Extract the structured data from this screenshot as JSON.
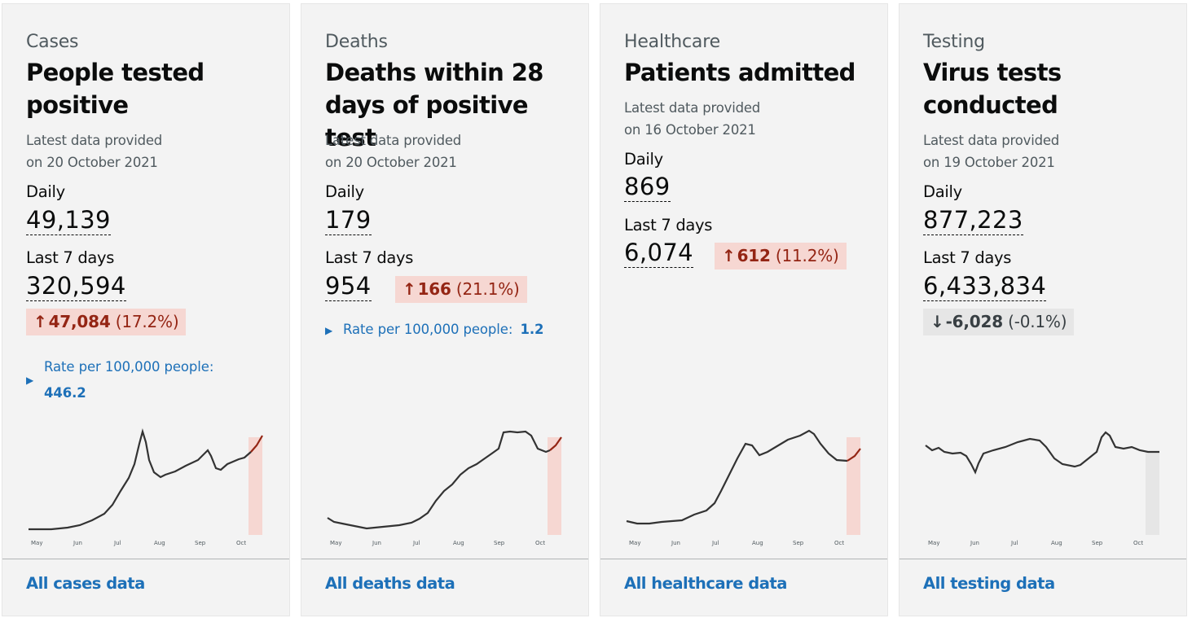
{
  "cards": [
    {
      "category": "Cases",
      "heading": [
        "People tested",
        "positive"
      ],
      "updated": [
        "Latest data provided",
        "on 20 October 2021"
      ],
      "daily_label": "Daily",
      "daily_value": "49,139",
      "week_label": "Last 7 days",
      "week_value": "320,594",
      "change": {
        "arrow": "↑",
        "value": "47,084",
        "pct": "(17.2%)",
        "direction": "up"
      },
      "rate": {
        "label": "Rate per 100,000 people:",
        "value": "446.2"
      },
      "chart_months": [
        "May",
        "Jun",
        "Jul",
        "Aug",
        "Sep",
        "Oct"
      ],
      "link": "All cases data"
    },
    {
      "category": "Deaths",
      "heading": [
        "Deaths within 28",
        "days of positive test"
      ],
      "updated": [
        "Latest data provided",
        "on 20 October 2021"
      ],
      "daily_label": "Daily",
      "daily_value": "179",
      "week_label": "Last 7 days",
      "week_value": "954",
      "change": {
        "arrow": "↑",
        "value": "166",
        "pct": "(21.1%)",
        "direction": "up"
      },
      "rate": {
        "label": "Rate per 100,000 people:",
        "value": "1.2"
      },
      "chart_months": [
        "May",
        "Jun",
        "Jul",
        "Aug",
        "Sep",
        "Oct"
      ],
      "link": "All deaths data"
    },
    {
      "category": "Healthcare",
      "heading": [
        "Patients admitted"
      ],
      "updated": [
        "Latest data provided",
        "on 16 October 2021"
      ],
      "daily_label": "Daily",
      "daily_value": "869",
      "week_label": "Last 7 days",
      "week_value": "6,074",
      "change": {
        "arrow": "↑",
        "value": "612",
        "pct": "(11.2%)",
        "direction": "up"
      },
      "chart_months": [
        "May",
        "Jun",
        "Jul",
        "Aug",
        "Sep",
        "Oct"
      ],
      "link": "All healthcare data"
    },
    {
      "category": "Testing",
      "heading": [
        "Virus tests",
        "conducted"
      ],
      "updated": [
        "Latest data provided",
        "on 19 October 2021"
      ],
      "daily_label": "Daily",
      "daily_value": "877,223",
      "week_label": "Last 7 days",
      "week_value": "6,433,834",
      "change": {
        "arrow": "↓",
        "value": "-6,028",
        "pct": "(-0.1%)",
        "direction": "neutral"
      },
      "chart_months": [
        "May",
        "Jun",
        "Jul",
        "Aug",
        "Sep",
        "Oct"
      ],
      "link": "All testing data"
    }
  ],
  "colors": {
    "link": "#1d70b8",
    "up_bg": "#f6d7d2",
    "up_text": "#942514",
    "neutral_bg": "#e6e6e6",
    "line": "#333333",
    "highlight_up": "#f6d7d2",
    "highlight_neutral": "#e6e6e6"
  }
}
